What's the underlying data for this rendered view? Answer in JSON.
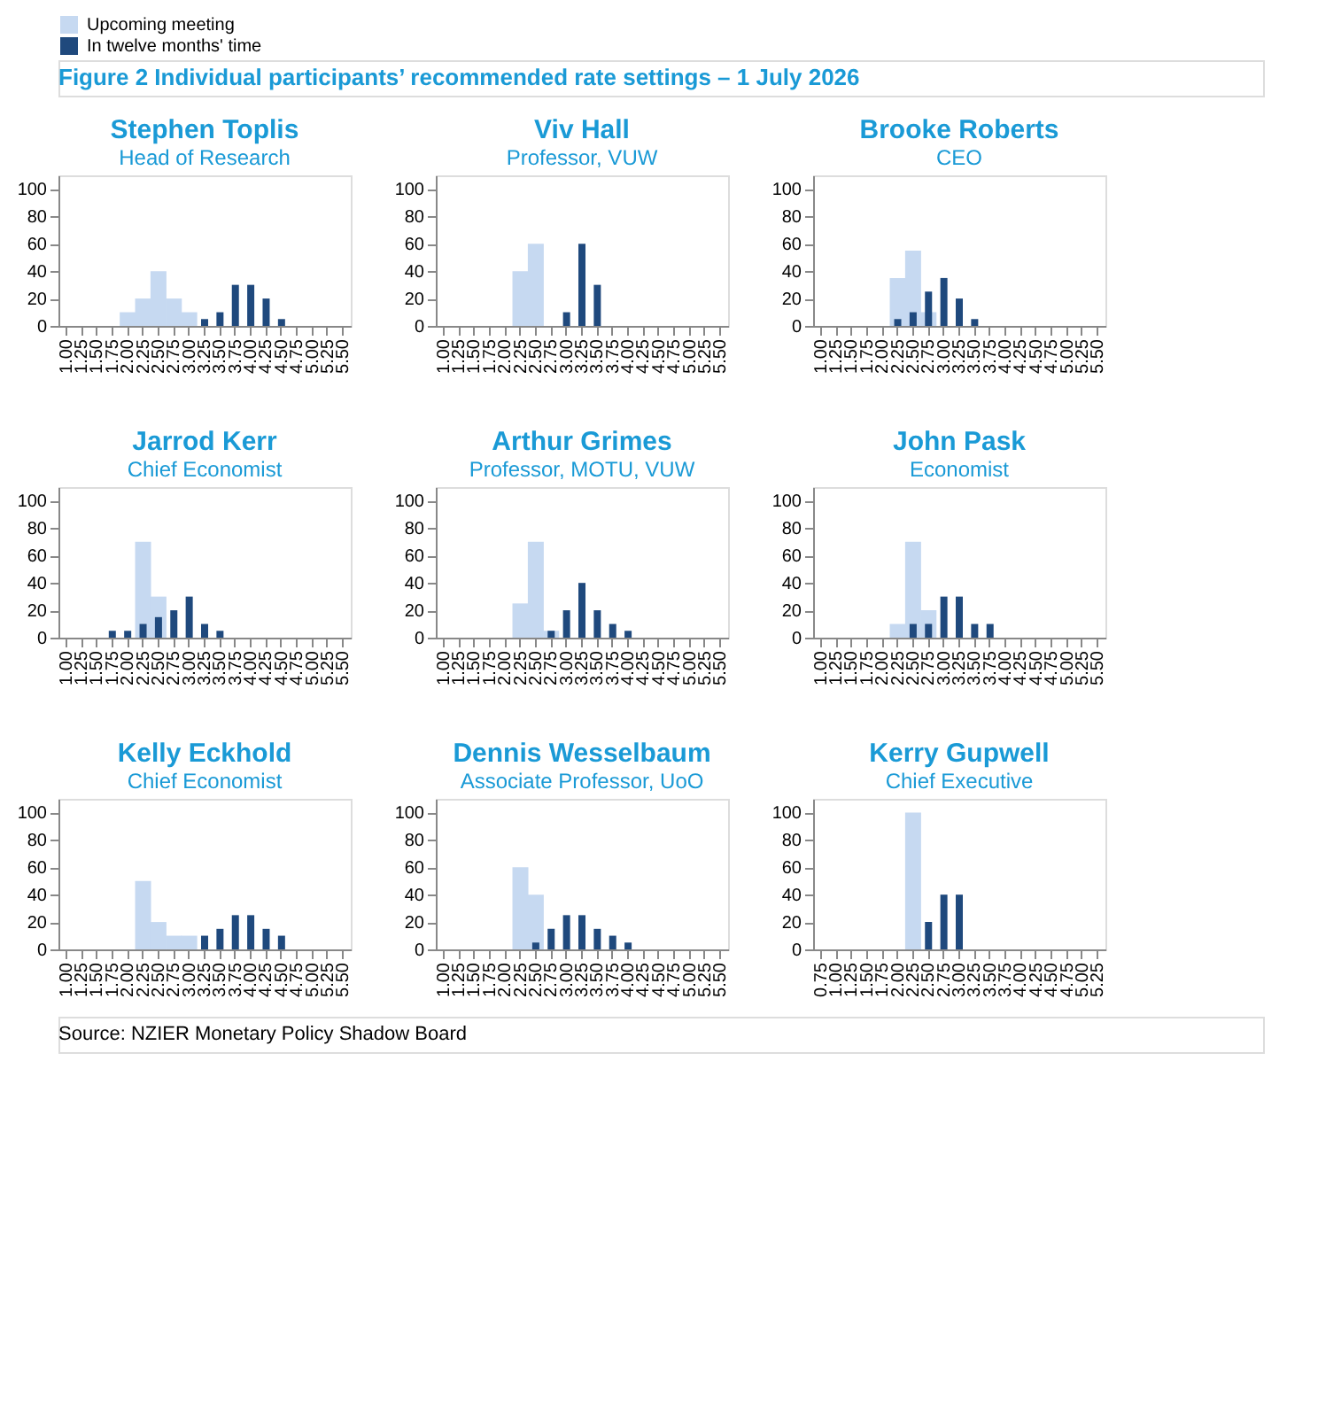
{
  "chart_data": [
    {
      "type": "bar",
      "title": "Stephen Toplis",
      "subtitle": "Head of Research",
      "annotations": [
        "Figure 2 Individual participants’ recommended rate settings – 1 July 2026",
        "Source: NZIER Monetary Policy Shadow Board"
      ],
      "categories": [
        "1.00",
        "1.25",
        "1.50",
        "1.75",
        "2.00",
        "2.25",
        "2.50",
        "2.75",
        "3.00",
        "3.25",
        "3.50",
        "3.75",
        "4.00",
        "4.25",
        "4.50",
        "4.75",
        "5.00",
        "5.25",
        "5.50"
      ],
      "ylim": [
        0,
        110
      ],
      "yticks": [
        0,
        20,
        40,
        60,
        80,
        100
      ],
      "legend": "top",
      "series": [
        {
          "name": "Upcoming meeting",
          "color": "#c6d9f1",
          "values": [
            null,
            null,
            null,
            null,
            10,
            20,
            40,
            20,
            10,
            null,
            null,
            null,
            null,
            null,
            null,
            null,
            null,
            null,
            null
          ]
        },
        {
          "name": "In twelve months' time",
          "color": "#1f497d",
          "values": [
            null,
            null,
            null,
            null,
            null,
            null,
            null,
            null,
            null,
            5,
            10,
            30,
            30,
            20,
            5,
            null,
            null,
            null,
            null
          ]
        }
      ]
    },
    {
      "type": "bar",
      "title": "Viv Hall",
      "subtitle": "Professor, VUW",
      "categories": [
        "1.00",
        "1.25",
        "1.50",
        "1.75",
        "2.00",
        "2.25",
        "2.50",
        "2.75",
        "3.00",
        "3.25",
        "3.50",
        "3.75",
        "4.00",
        "4.25",
        "4.50",
        "4.75",
        "5.00",
        "5.25",
        "5.50"
      ],
      "ylim": [
        0,
        110
      ],
      "yticks": [
        0,
        20,
        40,
        60,
        80,
        100
      ],
      "legend": "top",
      "series": [
        {
          "name": "Upcoming meeting",
          "color": "#c6d9f1",
          "values": [
            null,
            null,
            null,
            null,
            null,
            40,
            60,
            null,
            null,
            null,
            null,
            null,
            null,
            null,
            null,
            null,
            null,
            null,
            null
          ]
        },
        {
          "name": "In twelve months' time",
          "color": "#1f497d",
          "values": [
            null,
            null,
            null,
            null,
            null,
            null,
            null,
            null,
            10,
            60,
            30,
            null,
            null,
            null,
            null,
            null,
            null,
            null,
            null
          ]
        }
      ]
    },
    {
      "type": "bar",
      "title": "Brooke Roberts",
      "subtitle": "CEO",
      "categories": [
        "1.00",
        "1.25",
        "1.50",
        "1.75",
        "2.00",
        "2.25",
        "2.50",
        "2.75",
        "3.00",
        "3.25",
        "3.50",
        "3.75",
        "4.00",
        "4.25",
        "4.50",
        "4.75",
        "5.00",
        "5.25",
        "5.50"
      ],
      "ylim": [
        0,
        110
      ],
      "yticks": [
        0,
        20,
        40,
        60,
        80,
        100
      ],
      "legend": "top",
      "series": [
        {
          "name": "Upcoming meeting",
          "color": "#c6d9f1",
          "values": [
            null,
            null,
            null,
            null,
            null,
            35,
            55,
            10,
            null,
            null,
            null,
            null,
            null,
            null,
            null,
            null,
            null,
            null,
            null
          ]
        },
        {
          "name": "In twelve months' time",
          "color": "#1f497d",
          "values": [
            null,
            null,
            null,
            null,
            null,
            5,
            10,
            25,
            35,
            20,
            5,
            null,
            null,
            null,
            null,
            null,
            null,
            null,
            null
          ]
        }
      ]
    },
    {
      "type": "bar",
      "title": "Jarrod Kerr",
      "subtitle": "Chief Economist",
      "categories": [
        "1.00",
        "1.25",
        "1.50",
        "1.75",
        "2.00",
        "2.25",
        "2.50",
        "2.75",
        "3.00",
        "3.25",
        "3.50",
        "3.75",
        "4.00",
        "4.25",
        "4.50",
        "4.75",
        "5.00",
        "5.25",
        "5.50"
      ],
      "ylim": [
        0,
        110
      ],
      "yticks": [
        0,
        20,
        40,
        60,
        80,
        100
      ],
      "legend": "top",
      "series": [
        {
          "name": "Upcoming meeting",
          "color": "#c6d9f1",
          "values": [
            null,
            null,
            null,
            null,
            null,
            70,
            30,
            null,
            null,
            null,
            null,
            null,
            null,
            null,
            null,
            null,
            null,
            null,
            null
          ]
        },
        {
          "name": "In twelve months' time",
          "color": "#1f497d",
          "values": [
            null,
            null,
            null,
            5,
            5,
            10,
            15,
            20,
            30,
            10,
            5,
            null,
            null,
            null,
            null,
            null,
            null,
            null,
            null
          ]
        }
      ]
    },
    {
      "type": "bar",
      "title": "Arthur Grimes",
      "subtitle": "Professor, MOTU, VUW",
      "categories": [
        "1.00",
        "1.25",
        "1.50",
        "1.75",
        "2.00",
        "2.25",
        "2.50",
        "2.75",
        "3.00",
        "3.25",
        "3.50",
        "3.75",
        "4.00",
        "4.25",
        "4.50",
        "4.75",
        "5.00",
        "5.25",
        "5.50"
      ],
      "ylim": [
        0,
        110
      ],
      "yticks": [
        0,
        20,
        40,
        60,
        80,
        100
      ],
      "legend": "top",
      "series": [
        {
          "name": "Upcoming meeting",
          "color": "#c6d9f1",
          "values": [
            null,
            null,
            null,
            null,
            null,
            25,
            70,
            5,
            null,
            null,
            null,
            null,
            null,
            null,
            null,
            null,
            null,
            null,
            null
          ]
        },
        {
          "name": "In twelve months' time",
          "color": "#1f497d",
          "values": [
            null,
            null,
            null,
            null,
            null,
            null,
            null,
            5,
            20,
            40,
            20,
            10,
            5,
            null,
            null,
            null,
            null,
            null,
            null
          ]
        }
      ]
    },
    {
      "type": "bar",
      "title": "John Pask",
      "subtitle": "Economist",
      "categories": [
        "1.00",
        "1.25",
        "1.50",
        "1.75",
        "2.00",
        "2.25",
        "2.50",
        "2.75",
        "3.00",
        "3.25",
        "3.50",
        "3.75",
        "4.00",
        "4.25",
        "4.50",
        "4.75",
        "5.00",
        "5.25",
        "5.50"
      ],
      "ylim": [
        0,
        110
      ],
      "yticks": [
        0,
        20,
        40,
        60,
        80,
        100
      ],
      "legend": "top",
      "series": [
        {
          "name": "Upcoming meeting",
          "color": "#c6d9f1",
          "values": [
            null,
            null,
            null,
            null,
            null,
            10,
            70,
            20,
            null,
            null,
            null,
            null,
            null,
            null,
            null,
            null,
            null,
            null,
            null
          ]
        },
        {
          "name": "In twelve months' time",
          "color": "#1f497d",
          "values": [
            null,
            null,
            null,
            null,
            null,
            null,
            10,
            10,
            30,
            30,
            10,
            10,
            null,
            null,
            null,
            null,
            null,
            null,
            null
          ]
        }
      ]
    },
    {
      "type": "bar",
      "title": "Kelly Eckhold",
      "subtitle": "Chief Economist",
      "categories": [
        "1.00",
        "1.25",
        "1.50",
        "1.75",
        "2.00",
        "2.25",
        "2.50",
        "2.75",
        "3.00",
        "3.25",
        "3.50",
        "3.75",
        "4.00",
        "4.25",
        "4.50",
        "4.75",
        "5.00",
        "5.25",
        "5.50"
      ],
      "ylim": [
        0,
        110
      ],
      "yticks": [
        0,
        20,
        40,
        60,
        80,
        100
      ],
      "legend": "top",
      "series": [
        {
          "name": "Upcoming meeting",
          "color": "#c6d9f1",
          "values": [
            null,
            null,
            null,
            null,
            null,
            50,
            20,
            10,
            10,
            null,
            null,
            null,
            null,
            null,
            null,
            null,
            null,
            null,
            null
          ]
        },
        {
          "name": "In twelve months' time",
          "color": "#1f497d",
          "values": [
            null,
            null,
            null,
            null,
            null,
            null,
            null,
            null,
            null,
            10,
            15,
            25,
            25,
            15,
            10,
            null,
            null,
            null,
            null
          ]
        }
      ]
    },
    {
      "type": "bar",
      "title": "Dennis Wesselbaum",
      "subtitle": "Associate Professor, UoO",
      "categories": [
        "1.00",
        "1.25",
        "1.50",
        "1.75",
        "2.00",
        "2.25",
        "2.50",
        "2.75",
        "3.00",
        "3.25",
        "3.50",
        "3.75",
        "4.00",
        "4.25",
        "4.50",
        "4.75",
        "5.00",
        "5.25",
        "5.50"
      ],
      "ylim": [
        0,
        110
      ],
      "yticks": [
        0,
        20,
        40,
        60,
        80,
        100
      ],
      "legend": "top",
      "series": [
        {
          "name": "Upcoming meeting",
          "color": "#c6d9f1",
          "values": [
            null,
            null,
            null,
            null,
            null,
            60,
            40,
            null,
            null,
            null,
            null,
            null,
            null,
            null,
            null,
            null,
            null,
            null,
            null
          ]
        },
        {
          "name": "In twelve months' time",
          "color": "#1f497d",
          "values": [
            null,
            null,
            null,
            null,
            null,
            null,
            5,
            15,
            25,
            25,
            15,
            10,
            5,
            null,
            null,
            null,
            null,
            null,
            null
          ]
        }
      ]
    },
    {
      "type": "bar",
      "title": "Kerry Gupwell",
      "subtitle": "Chief Executive",
      "categories": [
        "0.75",
        "1.00",
        "1.25",
        "1.50",
        "1.75",
        "2.00",
        "2.25",
        "2.50",
        "2.75",
        "3.00",
        "3.25",
        "3.50",
        "3.75",
        "4.00",
        "4.25",
        "4.50",
        "4.75",
        "5.00",
        "5.25"
      ],
      "ylim": [
        0,
        110
      ],
      "yticks": [
        0,
        20,
        40,
        60,
        80,
        100
      ],
      "legend": "top",
      "series": [
        {
          "name": "Upcoming meeting",
          "color": "#c6d9f1",
          "values": [
            null,
            null,
            null,
            null,
            null,
            null,
            100,
            null,
            null,
            null,
            null,
            null,
            null,
            null,
            null,
            null,
            null,
            null,
            null
          ]
        },
        {
          "name": "In twelve months' time",
          "color": "#1f497d",
          "values": [
            null,
            null,
            null,
            null,
            null,
            null,
            null,
            20,
            40,
            40,
            null,
            null,
            null,
            null,
            null,
            null,
            null,
            null,
            null
          ]
        }
      ]
    }
  ]
}
